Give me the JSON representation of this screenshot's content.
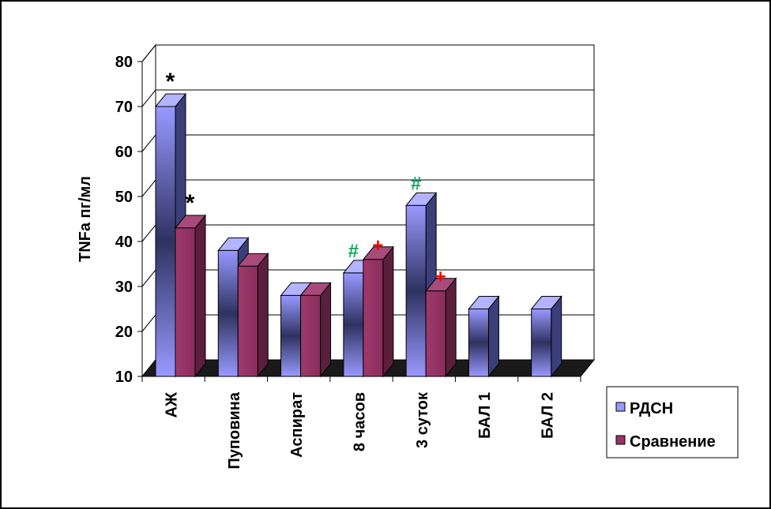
{
  "chart_data": {
    "type": "bar",
    "ylabel": "TNFa пг/мл",
    "ylim": [
      10,
      80
    ],
    "yticks": [
      10,
      20,
      30,
      40,
      50,
      60,
      70,
      80
    ],
    "grid": true,
    "categories": [
      "АЖ",
      "Пуповина",
      "Аспират",
      "8 часов",
      "3 суток",
      "БАЛ 1",
      "БАЛ 2"
    ],
    "series": [
      {
        "name": "РДСН",
        "values": [
          70,
          38,
          28,
          33,
          48,
          25,
          25
        ]
      },
      {
        "name": "Сравнение",
        "values": [
          43,
          34.5,
          28,
          36,
          29,
          null,
          null
        ]
      }
    ],
    "legend_position": "right",
    "annotations": [
      {
        "text": "*",
        "category": "АЖ",
        "series": "РДСН",
        "color": "#000000"
      },
      {
        "text": "*",
        "category": "АЖ",
        "series": "Сравнение",
        "color": "#000000"
      },
      {
        "text": "#",
        "category": "8 часов",
        "series": "РДСН",
        "color": "#18a860"
      },
      {
        "text": "+",
        "category": "8 часов",
        "series": "Сравнение",
        "color": "#ff0000"
      },
      {
        "text": "#",
        "category": "3 суток",
        "series": "РДСН",
        "color": "#18a860"
      },
      {
        "text": "+",
        "category": "3 суток",
        "series": "Сравнение",
        "color": "#ff0000"
      }
    ],
    "colors": {
      "series1": "#9999ff",
      "series1_dark": "#2a2f5e",
      "series2": "#993366",
      "series2_dark": "#5a1f3c",
      "floor": "#1a1a1a"
    }
  }
}
